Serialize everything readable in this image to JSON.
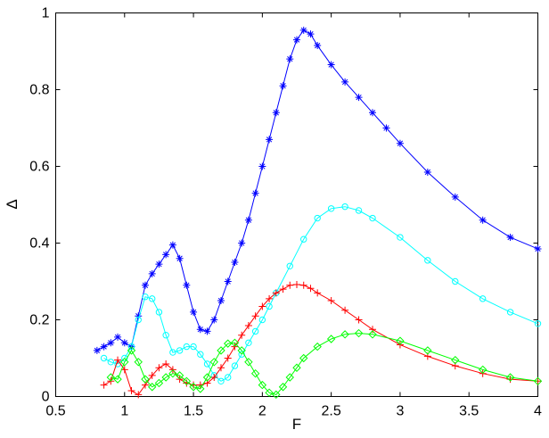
{
  "chart_data": {
    "type": "line",
    "xlabel": "F",
    "ylabel": "Δ",
    "xlim": [
      0.5,
      4
    ],
    "ylim": [
      0,
      1
    ],
    "xticks": [
      0.5,
      1,
      1.5,
      2,
      2.5,
      3,
      3.5,
      4
    ],
    "yticks": [
      0,
      0.2,
      0.4,
      0.6,
      0.8,
      1
    ],
    "xtick_labels": [
      "0.5",
      "1",
      "1.5",
      "2",
      "2.5",
      "3",
      "3.5",
      "4"
    ],
    "ytick_labels": [
      "0",
      "0.2",
      "0.4",
      "0.6",
      "0.8",
      "1"
    ],
    "grid": false,
    "box": true,
    "series": [
      {
        "marker": "asterisk",
        "color": "#0000ff",
        "x": [
          0.8,
          0.85,
          0.9,
          0.95,
          1.0,
          1.05,
          1.1,
          1.15,
          1.2,
          1.25,
          1.3,
          1.35,
          1.4,
          1.45,
          1.5,
          1.55,
          1.6,
          1.65,
          1.7,
          1.75,
          1.8,
          1.85,
          1.9,
          1.95,
          2.0,
          2.05,
          2.1,
          2.15,
          2.2,
          2.25,
          2.3,
          2.35,
          2.4,
          2.5,
          2.6,
          2.7,
          2.8,
          2.9,
          3.0,
          3.2,
          3.4,
          3.6,
          3.8,
          4.0
        ],
        "y": [
          0.12,
          0.13,
          0.14,
          0.155,
          0.14,
          0.13,
          0.21,
          0.29,
          0.32,
          0.345,
          0.37,
          0.395,
          0.36,
          0.29,
          0.22,
          0.175,
          0.17,
          0.2,
          0.25,
          0.3,
          0.35,
          0.4,
          0.46,
          0.53,
          0.6,
          0.67,
          0.74,
          0.81,
          0.88,
          0.93,
          0.955,
          0.945,
          0.915,
          0.865,
          0.82,
          0.78,
          0.74,
          0.7,
          0.66,
          0.585,
          0.52,
          0.46,
          0.415,
          0.385
        ]
      },
      {
        "marker": "circle",
        "color": "#00ffff",
        "x": [
          0.85,
          0.9,
          0.95,
          1.0,
          1.05,
          1.1,
          1.15,
          1.2,
          1.25,
          1.3,
          1.35,
          1.4,
          1.45,
          1.5,
          1.55,
          1.6,
          1.65,
          1.7,
          1.75,
          1.8,
          1.85,
          1.9,
          1.95,
          2.0,
          2.05,
          2.1,
          2.2,
          2.3,
          2.4,
          2.5,
          2.6,
          2.7,
          2.8,
          3.0,
          3.2,
          3.4,
          3.6,
          3.8,
          4.0
        ],
        "y": [
          0.1,
          0.09,
          0.085,
          0.1,
          0.13,
          0.2,
          0.26,
          0.255,
          0.22,
          0.16,
          0.115,
          0.12,
          0.13,
          0.13,
          0.11,
          0.085,
          0.055,
          0.04,
          0.05,
          0.08,
          0.11,
          0.14,
          0.17,
          0.2,
          0.235,
          0.27,
          0.34,
          0.41,
          0.465,
          0.49,
          0.495,
          0.485,
          0.465,
          0.415,
          0.355,
          0.3,
          0.255,
          0.22,
          0.19
        ]
      },
      {
        "marker": "plus",
        "color": "#ff0000",
        "x": [
          0.85,
          0.9,
          0.95,
          1.0,
          1.05,
          1.1,
          1.15,
          1.2,
          1.25,
          1.3,
          1.35,
          1.4,
          1.45,
          1.5,
          1.55,
          1.6,
          1.65,
          1.7,
          1.75,
          1.8,
          1.85,
          1.9,
          1.95,
          2.0,
          2.05,
          2.1,
          2.15,
          2.2,
          2.25,
          2.3,
          2.35,
          2.4,
          2.5,
          2.6,
          2.7,
          2.8,
          3.0,
          3.2,
          3.4,
          3.6,
          3.8,
          4.0
        ],
        "y": [
          0.03,
          0.04,
          0.095,
          0.07,
          0.015,
          0.005,
          0.03,
          0.055,
          0.075,
          0.085,
          0.07,
          0.045,
          0.035,
          0.03,
          0.03,
          0.035,
          0.05,
          0.075,
          0.1,
          0.13,
          0.16,
          0.185,
          0.21,
          0.235,
          0.255,
          0.27,
          0.28,
          0.29,
          0.292,
          0.29,
          0.282,
          0.27,
          0.25,
          0.225,
          0.2,
          0.175,
          0.135,
          0.105,
          0.08,
          0.06,
          0.045,
          0.04
        ]
      },
      {
        "marker": "diamond",
        "color": "#00ff00",
        "x": [
          0.9,
          0.95,
          1.0,
          1.05,
          1.1,
          1.15,
          1.2,
          1.25,
          1.3,
          1.35,
          1.4,
          1.45,
          1.5,
          1.55,
          1.6,
          1.65,
          1.7,
          1.75,
          1.8,
          1.85,
          1.9,
          1.95,
          2.0,
          2.05,
          2.1,
          2.15,
          2.2,
          2.25,
          2.3,
          2.4,
          2.5,
          2.6,
          2.7,
          2.8,
          3.0,
          3.2,
          3.4,
          3.6,
          3.8,
          4.0
        ],
        "y": [
          0.05,
          0.045,
          0.09,
          0.12,
          0.09,
          0.045,
          0.025,
          0.035,
          0.05,
          0.06,
          0.055,
          0.04,
          0.025,
          0.02,
          0.05,
          0.09,
          0.12,
          0.138,
          0.14,
          0.12,
          0.09,
          0.06,
          0.03,
          0.01,
          0.005,
          0.025,
          0.05,
          0.075,
          0.1,
          0.13,
          0.15,
          0.162,
          0.165,
          0.162,
          0.145,
          0.12,
          0.095,
          0.07,
          0.05,
          0.04
        ]
      }
    ]
  }
}
